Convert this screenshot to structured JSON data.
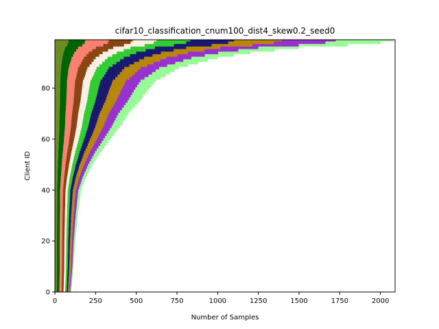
{
  "chart_data": {
    "type": "bar",
    "orientation": "horizontal",
    "stacked": true,
    "title": "cifar10_classification_cnum100_dist4_skew0.2_seed0",
    "xlabel": "Number of Samples",
    "ylabel": "Client ID",
    "xlim": [
      0,
      2090
    ],
    "ylim": [
      0,
      99
    ],
    "x_ticks": [
      0,
      250,
      500,
      750,
      1000,
      1250,
      1500,
      1750,
      2000
    ],
    "y_ticks": [
      0,
      20,
      40,
      60,
      80
    ],
    "num_clients": 100,
    "num_classes": 10,
    "class_colors": [
      "#6b8e23",
      "#006400",
      "#fa8072",
      "#8b4513",
      "#faf0e6",
      "#32cd32",
      "#191970",
      "#b8860b",
      "#9932cc",
      "#98fb98"
    ],
    "client_totals_anchor_ids": [
      0,
      10,
      20,
      30,
      40,
      45,
      50,
      55,
      60,
      65,
      70,
      75,
      80,
      83,
      85,
      88,
      90,
      92,
      94,
      96,
      97,
      98,
      99
    ],
    "client_totals_anchor_values": [
      100,
      115,
      125,
      140,
      160,
      190,
      230,
      280,
      340,
      400,
      450,
      520,
      580,
      620,
      680,
      760,
      880,
      1000,
      1200,
      1500,
      1800,
      2000,
      2080
    ],
    "class_fraction_start": [
      0.12,
      0.16,
      0.13,
      0.12,
      0.1,
      0.09,
      0.08,
      0.08,
      0.07,
      0.05
    ],
    "class_fraction_end": [
      0.04,
      0.05,
      0.07,
      0.07,
      0.07,
      0.1,
      0.13,
      0.14,
      0.16,
      0.17
    ],
    "grid": false,
    "legend": "none"
  }
}
